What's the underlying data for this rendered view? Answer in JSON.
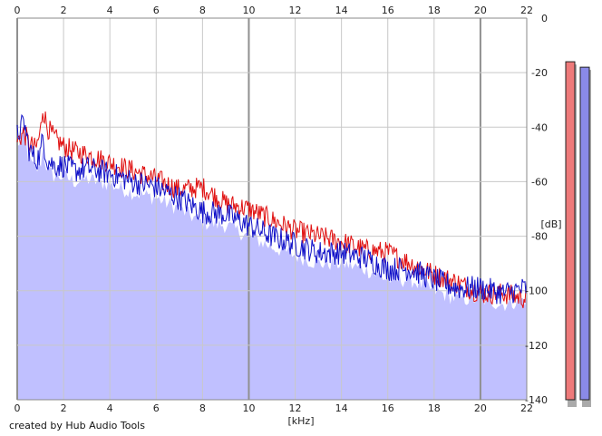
{
  "credit": "created by Hub Audio Tools",
  "colors": {
    "channel_red": "#e01010",
    "channel_blue": "#1010c8",
    "fill": "#c0c0ff",
    "meter_red": "#ee7a7a",
    "meter_blue": "#8a8ae8",
    "grid_minor": "#c8c8c8",
    "grid_major": "#909090"
  },
  "chart_data": {
    "type": "line",
    "title": "",
    "xlabel": "[kHz]",
    "ylabel": "[dB]",
    "xlim": [
      0,
      22
    ],
    "ylim": [
      -140,
      0
    ],
    "x_ticks": [
      "0",
      "2",
      "4",
      "6",
      "8",
      "10",
      "12",
      "14",
      "16",
      "18",
      "20",
      "22"
    ],
    "y_ticks": [
      "0",
      "-20",
      "-40",
      "-60",
      "-80",
      "-100",
      "-120",
      "-140"
    ],
    "grid": true,
    "major_x_gridlines": [
      0,
      10,
      20
    ],
    "series": [
      {
        "color": "#e01010",
        "x": [
          0,
          0.3,
          0.5,
          0.8,
          1.0,
          1.1,
          1.3,
          1.6,
          2.0,
          2.5,
          3.0,
          4.0,
          5.0,
          6.0,
          7.0,
          8.0,
          9.0,
          10.0,
          11.0,
          12.0,
          13.0,
          14.0,
          15.0,
          16.0,
          17.0,
          18.0,
          19.0,
          20.0,
          21.0,
          22.0
        ],
        "values": [
          -45,
          -42,
          -46,
          -48,
          -42,
          -33,
          -40,
          -44,
          -47,
          -49,
          -50,
          -53,
          -56,
          -59,
          -63,
          -62,
          -68,
          -70,
          -74,
          -78,
          -80,
          -82,
          -85,
          -86,
          -90,
          -94,
          -97,
          -101,
          -101,
          -103
        ]
      },
      {
        "color": "#1010c8",
        "x": [
          0,
          0.3,
          0.5,
          0.8,
          1.0,
          1.1,
          1.3,
          1.6,
          2.0,
          2.5,
          3.0,
          4.0,
          5.0,
          6.0,
          7.0,
          8.0,
          9.0,
          10.0,
          11.0,
          12.0,
          13.0,
          14.0,
          15.0,
          16.0,
          17.0,
          18.0,
          19.0,
          20.0,
          21.0,
          22.0
        ],
        "values": [
          -43,
          -38,
          -48,
          -52,
          -50,
          -44,
          -52,
          -54,
          -54,
          -56,
          -55,
          -57,
          -60,
          -62,
          -66,
          -71,
          -72,
          -76,
          -80,
          -83,
          -86,
          -86,
          -88,
          -92,
          -92,
          -96,
          -99,
          -99,
          -101,
          -99
        ]
      }
    ],
    "meters": [
      {
        "color": "#ee7a7a",
        "value": -16
      },
      {
        "color": "#8a8ae8",
        "value": -18
      }
    ]
  }
}
